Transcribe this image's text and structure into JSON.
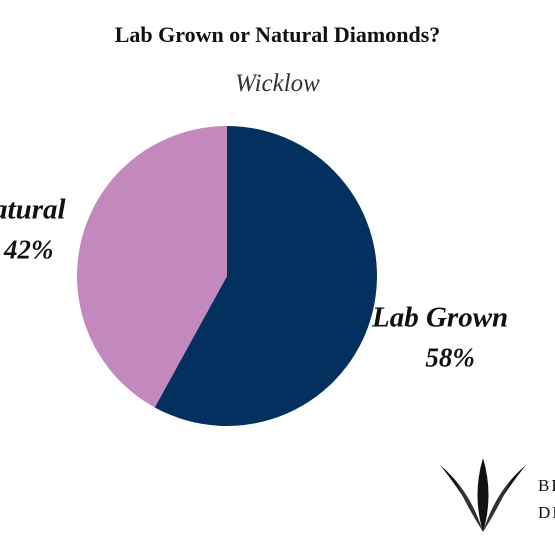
{
  "chart_data": {
    "type": "pie",
    "title": "Lab Grown or Natural Diamonds?",
    "subtitle": "Wicklow",
    "categories": [
      "Lab Grown",
      "Natural"
    ],
    "values": [
      58,
      42
    ],
    "value_labels": [
      "58%",
      "42%"
    ],
    "colors": [
      "#04305f",
      "#c388bd"
    ],
    "start_angle_deg": 0,
    "direction": "clockwise",
    "legend": "none"
  },
  "logo": {
    "line1": "BE",
    "line2": "DIA"
  }
}
